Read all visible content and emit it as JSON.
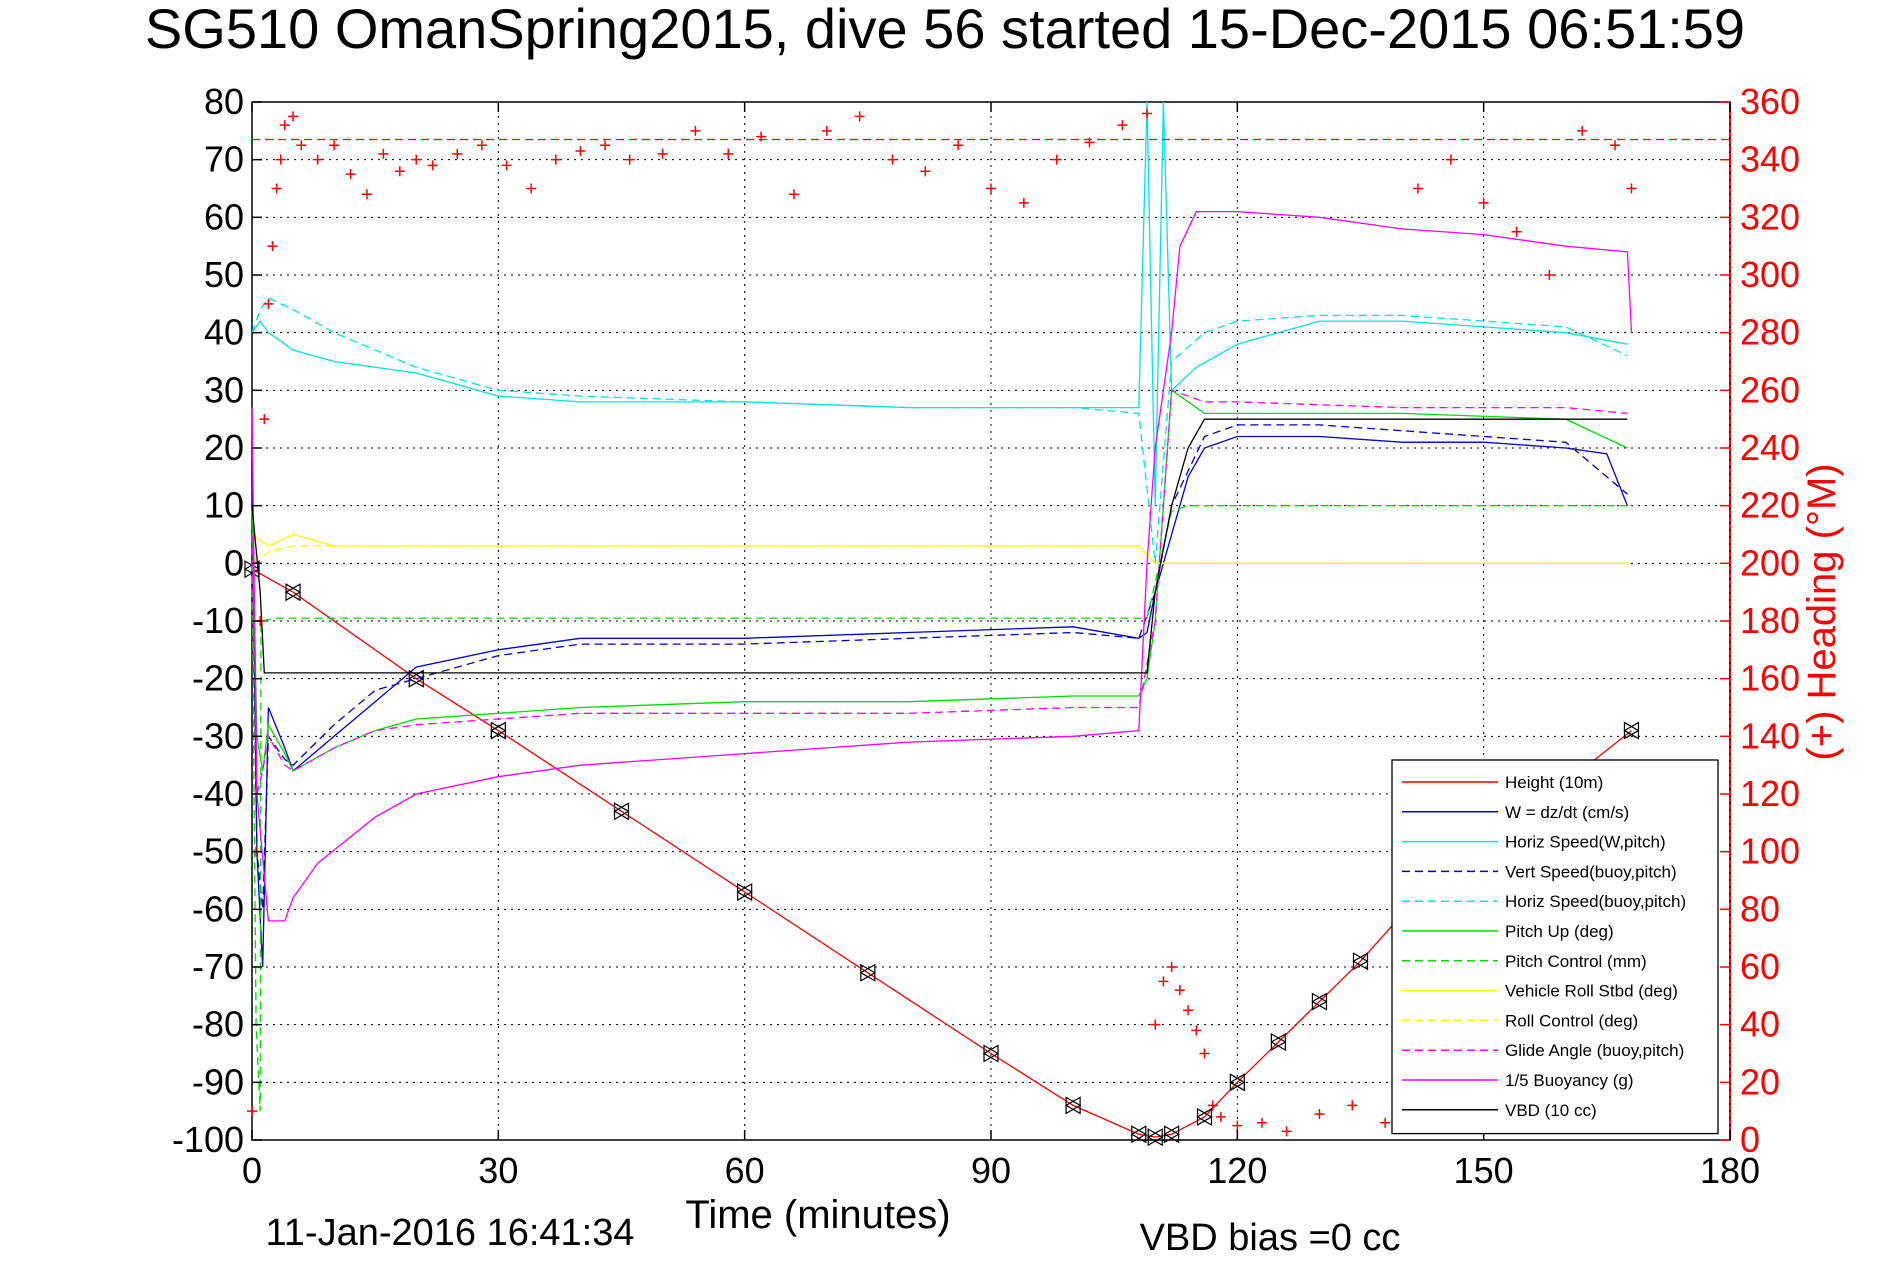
{
  "title": "SG510 OmanSpring2015, dive 56 started 15-Dec-2015 06:51:59",
  "footer": {
    "date": "11-Jan-2016 16:41:34",
    "vbd_bias": "VBD bias =0 cc"
  },
  "chart_data": {
    "type": "line",
    "xlabel": "Time (minutes)",
    "ylabel": "",
    "ylabel_right": "(+) Heading (°M)",
    "xlim": [
      0,
      180
    ],
    "ylim": [
      -100,
      80
    ],
    "ylim_right": [
      0,
      360
    ],
    "xticks": [
      0,
      30,
      60,
      90,
      120,
      150,
      180
    ],
    "yticks": [
      -100,
      -90,
      -80,
      -70,
      -60,
      -50,
      -40,
      -30,
      -20,
      -10,
      0,
      10,
      20,
      30,
      40,
      50,
      60,
      70,
      80
    ],
    "yticks_right": [
      0,
      20,
      40,
      60,
      80,
      100,
      120,
      140,
      160,
      180,
      200,
      220,
      240,
      260,
      280,
      300,
      320,
      340,
      360
    ],
    "grid": true,
    "legend_position": "bottom-right",
    "colors": {
      "red": "#ff0000",
      "blue": "#0000cc",
      "cyan": "#00e5e5",
      "green": "#00dd00",
      "yellow": "#ffff00",
      "magenta": "#ff00ff",
      "black": "#000000"
    },
    "heading_reference": 347,
    "series": [
      {
        "name": "Height (10m)",
        "color": "#ff0000",
        "dash": false,
        "marker": "triangle",
        "x": [
          0,
          5,
          20,
          30,
          45,
          60,
          75,
          90,
          100,
          108,
          110,
          112,
          116,
          120,
          125,
          130,
          135,
          140,
          150,
          160,
          168
        ],
        "y": [
          -1,
          -5,
          -20,
          -29,
          -43,
          -57,
          -71,
          -85,
          -94,
          -99,
          -99.5,
          -99,
          -96,
          -90,
          -83,
          -76,
          -69,
          -61,
          -49,
          -38,
          -29
        ]
      },
      {
        "name": "W = dz/dt (cm/s)",
        "color": "#0000cc",
        "dash": false,
        "marker": "",
        "x": [
          0,
          0.6,
          1.3,
          2,
          4,
          5,
          10,
          15,
          20,
          30,
          40,
          60,
          80,
          100,
          108,
          109,
          110,
          112,
          114,
          116,
          120,
          130,
          140,
          150,
          160,
          165,
          167.5
        ],
        "y": [
          15,
          -50,
          -70,
          -25,
          -32,
          -36,
          -30,
          -24,
          -18,
          -15,
          -13,
          -13,
          -12,
          -11,
          -13,
          -12,
          -5,
          5,
          15,
          20,
          22,
          22,
          21,
          21,
          20,
          19,
          10
        ]
      },
      {
        "name": "Horiz Speed(W,pitch)",
        "color": "#00e5e5",
        "dash": false,
        "marker": "",
        "x": [
          0,
          1,
          2,
          5,
          10,
          20,
          30,
          40,
          60,
          80,
          100,
          108,
          109,
          110,
          111,
          112,
          115,
          120,
          130,
          140,
          150,
          160,
          167.5
        ],
        "y": [
          40,
          42,
          40,
          37,
          35,
          33,
          29,
          28,
          28,
          27,
          27,
          27,
          80,
          10,
          80,
          30,
          34,
          38,
          42,
          42,
          41,
          40,
          38
        ]
      },
      {
        "name": "Vert Speed(buoy,pitch)",
        "color": "#0000cc",
        "dash": true,
        "marker": "",
        "x": [
          0,
          0.6,
          1.3,
          2,
          4,
          5,
          10,
          15,
          20,
          30,
          40,
          60,
          80,
          100,
          108,
          110,
          112,
          116,
          120,
          130,
          140,
          150,
          160,
          167.5
        ],
        "y": [
          5,
          -50,
          -60,
          -30,
          -34,
          -35,
          -28,
          -22,
          -20,
          -16,
          -14,
          -14,
          -13,
          -12,
          -13,
          -5,
          10,
          22,
          24,
          24,
          23,
          22,
          21,
          12
        ]
      },
      {
        "name": "Horiz Speed(buoy,pitch)",
        "color": "#00e5e5",
        "dash": true,
        "marker": "",
        "x": [
          0,
          1,
          2,
          5,
          10,
          20,
          30,
          40,
          60,
          80,
          100,
          108,
          110,
          112,
          116,
          120,
          130,
          140,
          150,
          160,
          167.5
        ],
        "y": [
          40,
          44,
          46,
          44,
          40,
          34,
          30,
          29,
          28,
          27,
          27,
          26,
          0,
          35,
          40,
          42,
          43,
          43,
          42,
          41,
          36
        ]
      },
      {
        "name": "Pitch Up (deg)",
        "color": "#00dd00",
        "dash": false,
        "marker": "",
        "x": [
          0,
          0.6,
          1.3,
          2,
          4,
          5,
          10,
          15,
          20,
          30,
          40,
          60,
          80,
          100,
          108,
          109,
          110,
          112,
          114,
          116,
          120,
          140,
          160,
          167.5
        ],
        "y": [
          10,
          -30,
          -36,
          -28,
          -33,
          -36,
          -32,
          -29,
          -27,
          -26,
          -25,
          -24,
          -24,
          -23,
          -23,
          -20,
          -10,
          30,
          28,
          26,
          26,
          26,
          25,
          20
        ]
      },
      {
        "name": "Pitch Control (mm)",
        "color": "#00dd00",
        "dash": true,
        "marker": "",
        "x": [
          0,
          0.5,
          1,
          1.1,
          3,
          109,
          112,
          114,
          167.5
        ],
        "y": [
          0,
          -80,
          -95,
          -10,
          -9.5,
          -9.5,
          9,
          10,
          10
        ]
      },
      {
        "name": "Vehicle Roll Stbd (deg)",
        "color": "#ffff00",
        "dash": false,
        "marker": "",
        "x": [
          0,
          2,
          5,
          10,
          30,
          60,
          90,
          108,
          110,
          115,
          130,
          150,
          167.5
        ],
        "y": [
          5,
          3,
          5,
          3,
          3,
          3,
          3,
          3,
          0,
          0,
          0,
          0,
          0
        ]
      },
      {
        "name": "Roll Control (deg)",
        "color": "#ffff00",
        "dash": true,
        "marker": "",
        "x": [
          0,
          2,
          5,
          10,
          30,
          60,
          90,
          108,
          110,
          115,
          130,
          150,
          167.5
        ],
        "y": [
          0,
          2,
          3,
          3,
          3,
          3,
          3,
          3,
          0,
          0,
          0,
          0,
          0
        ]
      },
      {
        "name": "Glide Angle (buoy,pitch)",
        "color": "#ff00ff",
        "dash": true,
        "marker": "",
        "x": [
          0,
          0.6,
          1.3,
          2,
          4,
          5,
          10,
          15,
          20,
          30,
          40,
          60,
          80,
          100,
          108,
          110,
          112,
          116,
          120,
          140,
          160,
          167.5
        ],
        "y": [
          5,
          -40,
          -36,
          -30,
          -35,
          -36,
          -32,
          -29,
          -28,
          -27,
          -26,
          -26,
          -26,
          -25,
          -25,
          -10,
          30,
          28,
          28,
          27,
          27,
          26
        ]
      },
      {
        "name": "1/5 Buoyancy (g)",
        "color": "#ff00ff",
        "dash": false,
        "marker": "",
        "x": [
          0,
          0.6,
          2,
          4,
          5,
          8,
          15,
          20,
          30,
          40,
          60,
          80,
          100,
          108,
          109,
          110,
          112,
          113,
          115,
          120,
          130,
          140,
          150,
          160,
          167.5,
          168
        ],
        "y": [
          27,
          -40,
          -62,
          -62,
          -58,
          -52,
          -44,
          -40,
          -37,
          -35,
          -33,
          -31,
          -30,
          -29,
          0,
          20,
          40,
          55,
          61,
          61,
          60,
          58,
          57,
          55,
          54,
          40
        ]
      },
      {
        "name": "VBD (10 cc)",
        "color": "#000000",
        "dash": false,
        "marker": "",
        "x": [
          0,
          1,
          1.5,
          2,
          109,
          110,
          112,
          114,
          116,
          120,
          140,
          160,
          167.5
        ],
        "y": [
          10,
          -5,
          -19,
          -19,
          -19,
          -5,
          10,
          20,
          25,
          25,
          25,
          25,
          25
        ]
      },
      {
        "name": "",
        "color": "#ff0000",
        "dash": false,
        "marker": "plus",
        "axis": "right",
        "x": [
          0,
          0.5,
          1,
          1.5,
          2,
          2.5,
          3,
          3.5,
          4,
          5,
          6,
          8,
          10,
          12,
          14,
          16,
          18,
          20,
          22,
          25,
          28,
          31,
          34,
          37,
          40,
          43,
          46,
          50,
          54,
          58,
          62,
          66,
          70,
          74,
          78,
          82,
          86,
          90,
          94,
          98,
          102,
          106,
          109,
          110,
          111,
          112,
          113,
          114,
          115,
          116,
          117,
          118,
          120,
          123,
          126,
          130,
          134,
          138,
          142,
          146,
          150,
          154,
          158,
          162,
          166,
          168
        ],
        "y": [
          10,
          100,
          180,
          250,
          290,
          310,
          330,
          340,
          352,
          355,
          345,
          340,
          345,
          335,
          328,
          342,
          336,
          340,
          338,
          342,
          345,
          338,
          330,
          340,
          343,
          345,
          340,
          342,
          350,
          342,
          348,
          328,
          350,
          355,
          340,
          336,
          345,
          330,
          325,
          340,
          346,
          352,
          356,
          40,
          55,
          60,
          52,
          45,
          38,
          30,
          12,
          8,
          5,
          6,
          3,
          9,
          12,
          6,
          330,
          340,
          325,
          315,
          300,
          350,
          345,
          330
        ]
      }
    ]
  }
}
